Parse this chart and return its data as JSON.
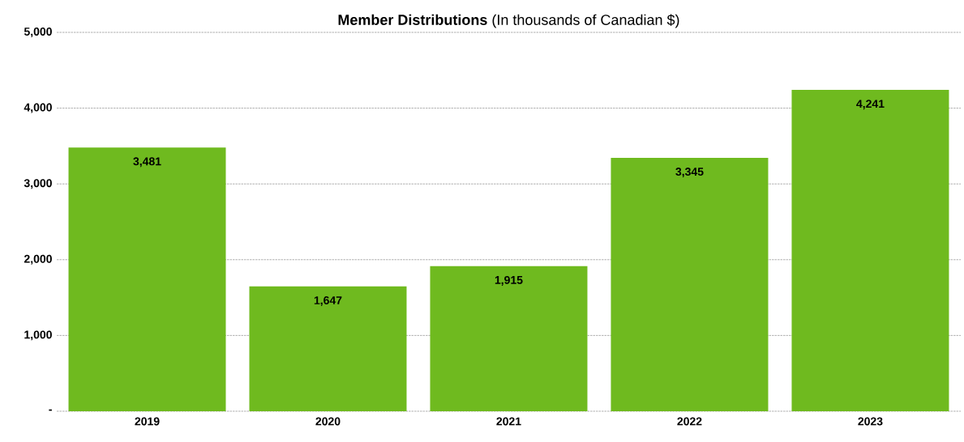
{
  "chart_data": {
    "type": "bar",
    "title": "**Member Distributions** (In thousands of Canadian $)",
    "categories": [
      "2019",
      "2020",
      "2021",
      "2022",
      "2023"
    ],
    "values": [
      3481,
      1647,
      1915,
      3345,
      4241
    ],
    "value_labels": [
      "3,481",
      "1,647",
      "1,915",
      "3,345",
      "4,241"
    ],
    "color": "#6fba1f",
    "ylim": [
      0,
      5000
    ],
    "yticks": [
      {
        "value": 0,
        "label": "-"
      },
      {
        "value": 1000,
        "label": "1,000"
      },
      {
        "value": 2000,
        "label": "2,000"
      },
      {
        "value": 3000,
        "label": "3,000"
      },
      {
        "value": 4000,
        "label": "4,000"
      },
      {
        "value": 5000,
        "label": "5,000"
      }
    ],
    "grid": "y"
  }
}
